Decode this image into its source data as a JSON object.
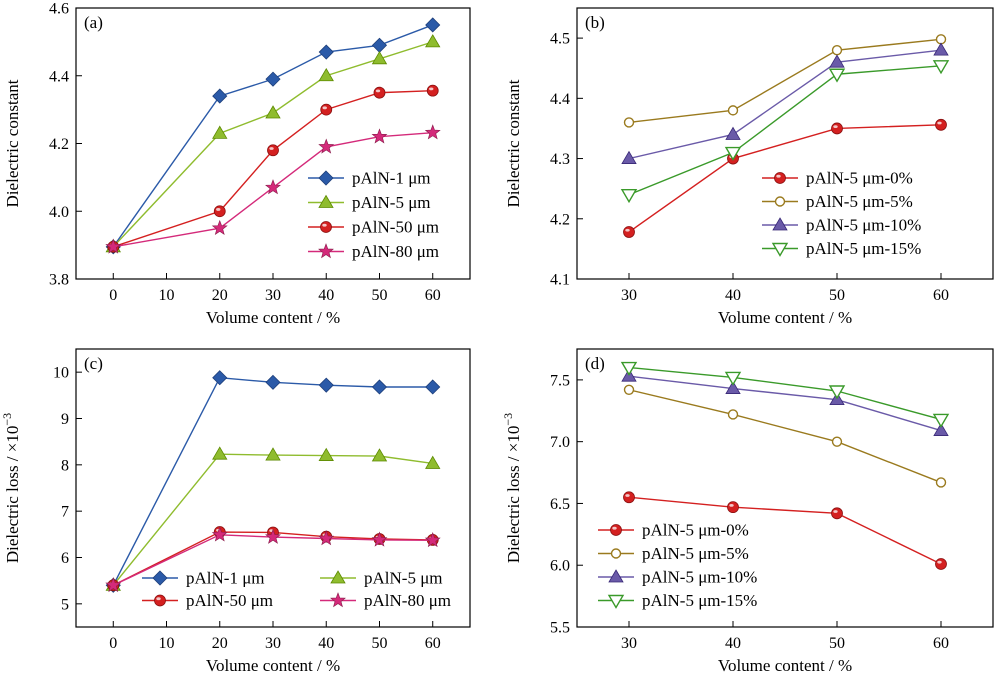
{
  "chart_data": [
    {
      "id": "a",
      "type": "line",
      "panel_label": "(a)",
      "xlabel": "Volume content / %",
      "ylabel": "Dielectric constant",
      "xlim": [
        -7,
        67
      ],
      "ylim": [
        3.8,
        4.6
      ],
      "xticks": [
        0,
        10,
        20,
        30,
        40,
        50,
        60
      ],
      "yticks": [
        3.8,
        4.0,
        4.2,
        4.4,
        4.6
      ],
      "ytick_labels": [
        "3.8",
        "4.0",
        "4.2",
        "4.4",
        "4.6"
      ],
      "legend_position": "lower-right",
      "legend_columns": 1,
      "x": [
        0,
        20,
        30,
        40,
        50,
        60
      ],
      "series": [
        {
          "name": "pAlN-1 μm",
          "color": "#2b5aa8",
          "marker": "diamond",
          "values": [
            3.895,
            4.34,
            4.39,
            4.47,
            4.49,
            4.55
          ]
        },
        {
          "name": "pAlN-5 μm",
          "color": "#8fbc2e",
          "marker": "triangle-up",
          "values": [
            3.895,
            4.23,
            4.29,
            4.4,
            4.45,
            4.5
          ]
        },
        {
          "name": "pAlN-50 μm",
          "color": "#d42020",
          "marker": "sphere",
          "values": [
            3.895,
            4.0,
            4.18,
            4.3,
            4.35,
            4.356
          ]
        },
        {
          "name": "pAlN-80 μm",
          "color": "#d42a7a",
          "marker": "star",
          "values": [
            3.895,
            3.95,
            4.07,
            4.19,
            4.22,
            4.232
          ]
        }
      ]
    },
    {
      "id": "b",
      "type": "line",
      "panel_label": "(b)",
      "xlabel": "Volume content / %",
      "ylabel": "Dielectric constant",
      "xlim": [
        25,
        65
      ],
      "ylim": [
        4.1,
        4.55
      ],
      "xticks": [
        30,
        40,
        50,
        60
      ],
      "yticks": [
        4.1,
        4.2,
        4.3,
        4.4,
        4.5
      ],
      "ytick_labels": [
        "4.1",
        "4.2",
        "4.3",
        "4.4",
        "4.5"
      ],
      "legend_position": "lower-right",
      "legend_columns": 1,
      "x": [
        30,
        40,
        50,
        60
      ],
      "series": [
        {
          "name": "pAlN-5 μm-0%",
          "color": "#d42020",
          "marker": "sphere",
          "values": [
            4.178,
            4.3,
            4.35,
            4.356
          ]
        },
        {
          "name": "pAlN-5 μm-5%",
          "color": "#9a7a1e",
          "marker": "open-circle",
          "values": [
            4.36,
            4.38,
            4.48,
            4.498
          ]
        },
        {
          "name": "pAlN-5 μm-10%",
          "color": "#6a5aa8",
          "marker": "triangle-up",
          "values": [
            4.3,
            4.34,
            4.46,
            4.48
          ]
        },
        {
          "name": "pAlN-5 μm-15%",
          "color": "#3a9a2a",
          "marker": "triangle-down",
          "values": [
            4.24,
            4.31,
            4.44,
            4.454
          ]
        }
      ]
    },
    {
      "id": "c",
      "type": "line",
      "panel_label": "(c)",
      "xlabel": "Volume content / %",
      "ylabel": "Dielectric loss / ×10",
      "ylabel_superscript": "−3",
      "xlim": [
        -7,
        67
      ],
      "ylim": [
        4.5,
        10.5
      ],
      "xticks": [
        0,
        10,
        20,
        30,
        40,
        50,
        60
      ],
      "yticks": [
        5,
        6,
        7,
        8,
        9,
        10
      ],
      "ytick_labels": [
        "5",
        "6",
        "7",
        "8",
        "9",
        "10"
      ],
      "legend_position": "bottom",
      "legend_columns": 2,
      "x": [
        0,
        20,
        30,
        40,
        50,
        60
      ],
      "series": [
        {
          "name": "pAlN-1 μm",
          "color": "#2b5aa8",
          "marker": "diamond",
          "values": [
            5.4,
            9.88,
            9.78,
            9.72,
            9.68,
            9.68
          ]
        },
        {
          "name": "pAlN-5 μm",
          "color": "#8fbc2e",
          "marker": "triangle-up",
          "values": [
            5.4,
            8.23,
            8.21,
            8.2,
            8.19,
            8.03
          ]
        },
        {
          "name": "pAlN-50 μm",
          "color": "#d42020",
          "marker": "sphere",
          "values": [
            5.4,
            6.55,
            6.54,
            6.45,
            6.4,
            6.38
          ]
        },
        {
          "name": "pAlN-80 μm",
          "color": "#d42a7a",
          "marker": "star",
          "values": [
            5.4,
            6.49,
            6.44,
            6.41,
            6.38,
            6.37
          ]
        }
      ]
    },
    {
      "id": "d",
      "type": "line",
      "panel_label": "(d)",
      "xlabel": "Volume content / %",
      "ylabel": "Dielectric loss / ×10",
      "ylabel_superscript": "−3",
      "xlim": [
        25,
        65
      ],
      "ylim": [
        5.5,
        7.75
      ],
      "xticks": [
        30,
        40,
        50,
        60
      ],
      "yticks": [
        5.5,
        6.0,
        6.5,
        7.0,
        7.5
      ],
      "ytick_labels": [
        "5.5",
        "6.0",
        "6.5",
        "7.0",
        "7.5"
      ],
      "legend_position": "lower-left",
      "legend_columns": 1,
      "x": [
        30,
        40,
        50,
        60
      ],
      "series": [
        {
          "name": "pAlN-5 μm-0%",
          "color": "#d42020",
          "marker": "sphere",
          "values": [
            6.55,
            6.47,
            6.42,
            6.01
          ]
        },
        {
          "name": "pAlN-5 μm-5%",
          "color": "#9a7a1e",
          "marker": "open-circle",
          "values": [
            7.42,
            7.22,
            7.0,
            6.67
          ]
        },
        {
          "name": "pAlN-5 μm-10%",
          "color": "#6a5aa8",
          "marker": "triangle-up",
          "values": [
            7.53,
            7.43,
            7.34,
            7.09
          ]
        },
        {
          "name": "pAlN-5 μm-15%",
          "color": "#3a9a2a",
          "marker": "triangle-down",
          "values": [
            7.6,
            7.52,
            7.41,
            7.18
          ]
        }
      ]
    }
  ]
}
